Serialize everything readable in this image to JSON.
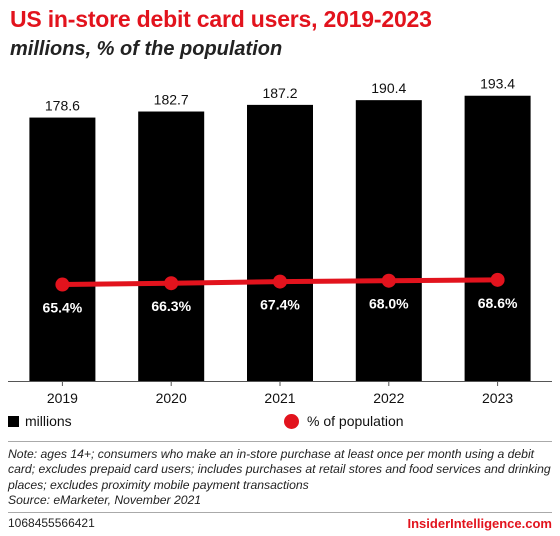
{
  "header": {
    "title": "US in-store debit card users, 2019-2023",
    "subtitle": "millions, % of the population"
  },
  "chart_data": {
    "type": "bar",
    "categories": [
      "2019",
      "2020",
      "2021",
      "2022",
      "2023"
    ],
    "series": [
      {
        "name": "millions",
        "kind": "bar",
        "values": [
          178.6,
          182.7,
          187.2,
          190.4,
          193.4
        ],
        "labels": [
          "178.6",
          "182.7",
          "187.2",
          "190.4",
          "193.4"
        ]
      },
      {
        "name": "% of population",
        "kind": "line",
        "values": [
          65.4,
          66.3,
          67.4,
          68.0,
          68.6
        ],
        "labels": [
          "65.4%",
          "66.3%",
          "67.4%",
          "68.0%",
          "68.6%"
        ]
      }
    ],
    "bar_range": [
      0,
      200
    ],
    "line_range": [
      0,
      200
    ],
    "legend": "bottom",
    "grid": false,
    "colors": {
      "bar": "#000000",
      "line": "#e2131d",
      "accent": "#e2131d"
    }
  },
  "legend": {
    "items": [
      "millions",
      "% of population"
    ]
  },
  "footer": {
    "note": "Note: ages 14+; consumers who make an in-store purchase at least once per month using a debit card; excludes prepaid card users; includes purchases at retail stores and food services and drinking places; excludes proximity mobile payment transactions",
    "source": "Source: eMarketer, November 2021",
    "id": "1068455566421",
    "brand": "InsiderIntelligence.com"
  }
}
